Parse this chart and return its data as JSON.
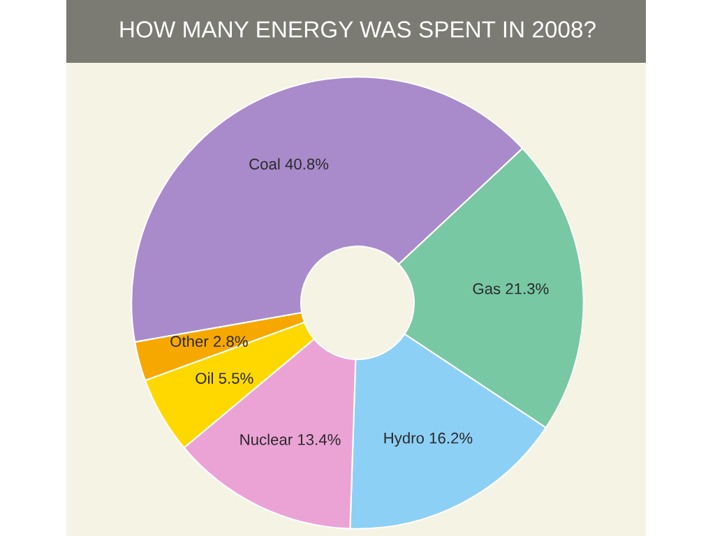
{
  "chart_data": {
    "type": "donut",
    "title": "HOW MANY ENERGY WAS SPENT IN 2008?",
    "categories": [
      "Coal",
      "Gas",
      "Hydro",
      "Nuclear",
      "Oil",
      "Other"
    ],
    "values": [
      40.8,
      21.3,
      16.2,
      13.4,
      5.5,
      2.8
    ],
    "value_labels": [
      "40.8%",
      "21.3%",
      "16.2%",
      "13.4%",
      "5.5%",
      "2.8%"
    ],
    "colors": [
      "#a98bcb",
      "#78c8a4",
      "#8dd0f6",
      "#eba3d6",
      "#ffd800",
      "#f7a800"
    ]
  }
}
